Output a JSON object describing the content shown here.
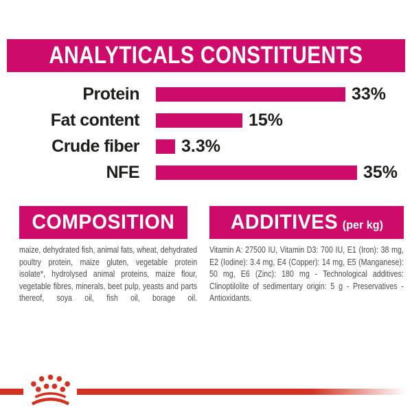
{
  "colors": {
    "magenta": "#ce0a6a",
    "red": "#d3301f",
    "label_text": "#1d1d1b",
    "body_text": "#4b4b4b",
    "background": "#ffffff"
  },
  "header": {
    "title": "ANALYTICALS CONSTITUENTS"
  },
  "chart_data": {
    "type": "bar",
    "orientation": "horizontal",
    "categories": [
      "Protein",
      "Fat content",
      "Crude fiber",
      "NFE"
    ],
    "values": [
      33,
      15,
      3.3,
      35
    ],
    "value_labels": [
      "33%",
      "15%",
      "3.3%",
      "35%"
    ],
    "xlim": [
      0,
      35
    ],
    "bar_color": "#ce0a6a",
    "grid": false,
    "legend": false,
    "title": "ANALYTICALS CONSTITUENTS"
  },
  "composition": {
    "heading": "COMPOSITION",
    "body": "maize, dehydrated fish, animal fats, wheat, dehydrated poultry protein, maize gluten, vegetable protein isolate*, hydrolysed animal proteins, maize flour, vegetable fibres, minerals, beet pulp, yeasts and parts thereof, soya oil, fish oil, borage oil."
  },
  "additives": {
    "heading": "ADDITIVES",
    "heading_suffix": "(per kg)",
    "body": "Vitamin A: 27500 IU, Vitamin D3: 700 IU, E1 (Iron): 38 mg, E2 (Iodine): 3.4 mg, E4 (Copper): 14 mg, E5 (Manganese): 50 mg, E6 (Zinc): 180 mg - Technological additives: Clinoptilolite of sedimentary origin: 5 g - Preservatives - Antioxidants."
  },
  "footer": {
    "logo": "royal-canin-crown"
  }
}
